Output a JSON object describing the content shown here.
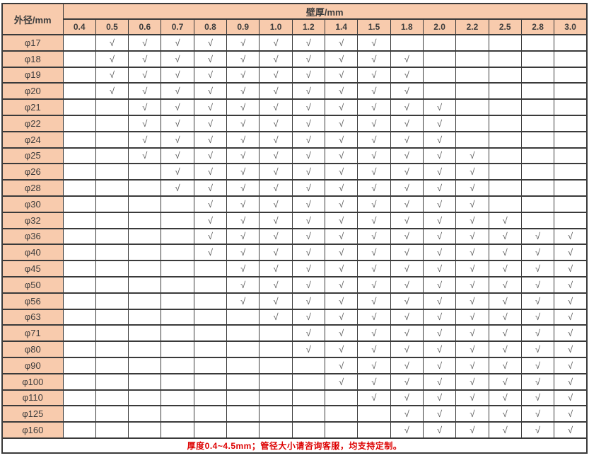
{
  "colors": {
    "header_bg": "#F8CBAD",
    "border": "#3a3a3a",
    "check": "#595959",
    "note": "#DD0000"
  },
  "table": {
    "corner_header": "外径/mm",
    "group_header": "壁厚/mm",
    "check_glyph": "√",
    "columns": [
      "0.4",
      "0.5",
      "0.6",
      "0.7",
      "0.8",
      "0.9",
      "1.0",
      "1.2",
      "1.4",
      "1.5",
      "1.8",
      "2.0",
      "2.2",
      "2.5",
      "2.8",
      "3.0"
    ],
    "rows": [
      {
        "label": "φ17",
        "checks": [
          0,
          1,
          1,
          1,
          1,
          1,
          1,
          1,
          1,
          1,
          0,
          0,
          0,
          0,
          0,
          0
        ]
      },
      {
        "label": "φ18",
        "checks": [
          0,
          1,
          1,
          1,
          1,
          1,
          1,
          1,
          1,
          1,
          1,
          0,
          0,
          0,
          0,
          0
        ]
      },
      {
        "label": "φ19",
        "checks": [
          0,
          1,
          1,
          1,
          1,
          1,
          1,
          1,
          1,
          1,
          1,
          0,
          0,
          0,
          0,
          0
        ]
      },
      {
        "label": "φ20",
        "checks": [
          0,
          1,
          1,
          1,
          1,
          1,
          1,
          1,
          1,
          1,
          1,
          0,
          0,
          0,
          0,
          0
        ]
      },
      {
        "label": "φ21",
        "checks": [
          0,
          0,
          1,
          1,
          1,
          1,
          1,
          1,
          1,
          1,
          1,
          1,
          0,
          0,
          0,
          0
        ]
      },
      {
        "label": "φ22",
        "checks": [
          0,
          0,
          1,
          1,
          1,
          1,
          1,
          1,
          1,
          1,
          1,
          1,
          0,
          0,
          0,
          0
        ]
      },
      {
        "label": "φ24",
        "checks": [
          0,
          0,
          1,
          1,
          1,
          1,
          1,
          1,
          1,
          1,
          1,
          1,
          0,
          0,
          0,
          0
        ]
      },
      {
        "label": "φ25",
        "checks": [
          0,
          0,
          1,
          1,
          1,
          1,
          1,
          1,
          1,
          1,
          1,
          1,
          1,
          0,
          0,
          0
        ]
      },
      {
        "label": "φ26",
        "checks": [
          0,
          0,
          0,
          1,
          1,
          1,
          1,
          1,
          1,
          1,
          1,
          1,
          1,
          0,
          0,
          0
        ]
      },
      {
        "label": "φ28",
        "checks": [
          0,
          0,
          0,
          1,
          1,
          1,
          1,
          1,
          1,
          1,
          1,
          1,
          1,
          0,
          0,
          0
        ]
      },
      {
        "label": "φ30",
        "checks": [
          0,
          0,
          0,
          0,
          1,
          1,
          1,
          1,
          1,
          1,
          1,
          1,
          1,
          0,
          0,
          0
        ]
      },
      {
        "label": "φ32",
        "checks": [
          0,
          0,
          0,
          0,
          1,
          1,
          1,
          1,
          1,
          1,
          1,
          1,
          1,
          1,
          0,
          0
        ]
      },
      {
        "label": "φ36",
        "checks": [
          0,
          0,
          0,
          0,
          1,
          1,
          1,
          1,
          1,
          1,
          1,
          1,
          1,
          1,
          1,
          1
        ]
      },
      {
        "label": "φ40",
        "checks": [
          0,
          0,
          0,
          0,
          1,
          1,
          1,
          1,
          1,
          1,
          1,
          1,
          1,
          1,
          1,
          1
        ]
      },
      {
        "label": "φ45",
        "checks": [
          0,
          0,
          0,
          0,
          0,
          1,
          1,
          1,
          1,
          1,
          1,
          1,
          1,
          1,
          1,
          1
        ]
      },
      {
        "label": "φ50",
        "checks": [
          0,
          0,
          0,
          0,
          0,
          1,
          1,
          1,
          1,
          1,
          1,
          1,
          1,
          1,
          1,
          1
        ]
      },
      {
        "label": "φ56",
        "checks": [
          0,
          0,
          0,
          0,
          0,
          1,
          1,
          1,
          1,
          1,
          1,
          1,
          1,
          1,
          1,
          1
        ]
      },
      {
        "label": "φ63",
        "checks": [
          0,
          0,
          0,
          0,
          0,
          0,
          1,
          1,
          1,
          1,
          1,
          1,
          1,
          1,
          1,
          1
        ]
      },
      {
        "label": "φ71",
        "checks": [
          0,
          0,
          0,
          0,
          0,
          0,
          0,
          1,
          1,
          1,
          1,
          1,
          1,
          1,
          1,
          1
        ]
      },
      {
        "label": "φ80",
        "checks": [
          0,
          0,
          0,
          0,
          0,
          0,
          0,
          1,
          1,
          1,
          1,
          1,
          1,
          1,
          1,
          1
        ]
      },
      {
        "label": "φ90",
        "checks": [
          0,
          0,
          0,
          0,
          0,
          0,
          0,
          0,
          1,
          1,
          1,
          1,
          1,
          1,
          1,
          1
        ]
      },
      {
        "label": "φ100",
        "checks": [
          0,
          0,
          0,
          0,
          0,
          0,
          0,
          0,
          1,
          1,
          1,
          1,
          1,
          1,
          1,
          1
        ]
      },
      {
        "label": "φ110",
        "checks": [
          0,
          0,
          0,
          0,
          0,
          0,
          0,
          0,
          0,
          1,
          1,
          1,
          1,
          1,
          1,
          1
        ]
      },
      {
        "label": "φ125",
        "checks": [
          0,
          0,
          0,
          0,
          0,
          0,
          0,
          0,
          0,
          0,
          1,
          1,
          1,
          1,
          1,
          1
        ]
      },
      {
        "label": "φ160",
        "checks": [
          0,
          0,
          0,
          0,
          0,
          0,
          0,
          0,
          0,
          0,
          1,
          1,
          1,
          1,
          1,
          1
        ]
      }
    ],
    "footer_note": "厚度0.4~4.5mm；管径大小请咨询客服，均支持定制。"
  }
}
